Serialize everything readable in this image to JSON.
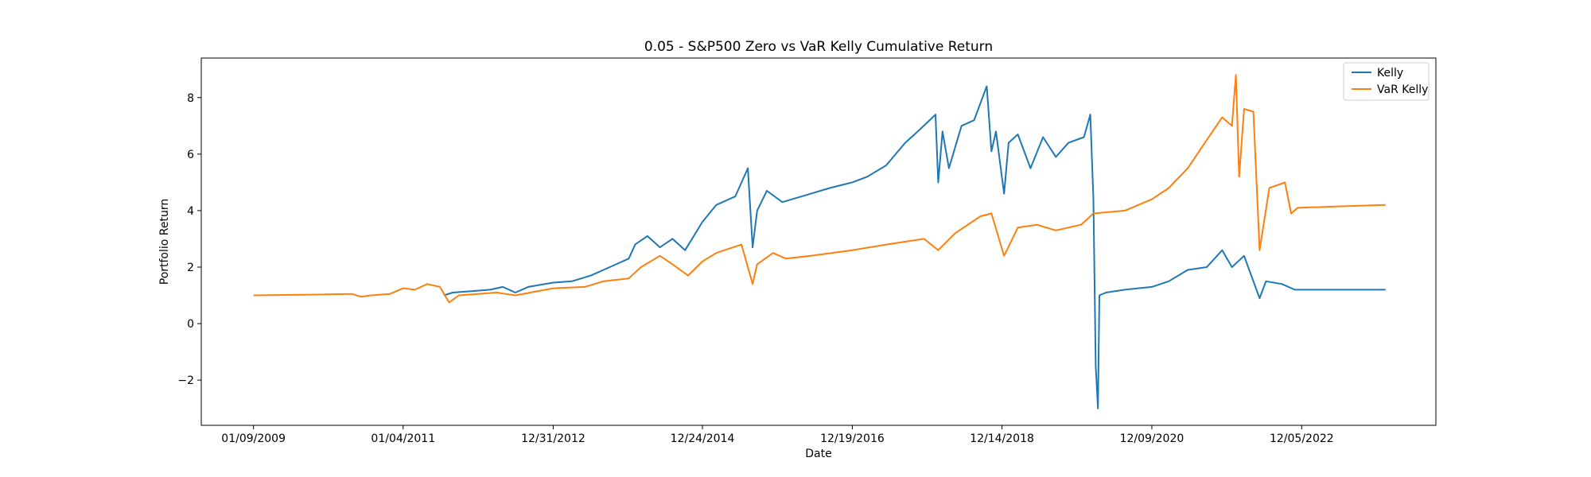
{
  "chart_data": {
    "type": "line",
    "title": "0.05 - S&P500 Zero vs VaR Kelly Cumulative Return",
    "xlabel": "Date",
    "ylabel": "Portfolio Return",
    "x_ticks": [
      "01/09/2009",
      "01/04/2011",
      "12/31/2012",
      "12/24/2014",
      "12/19/2016",
      "12/14/2018",
      "12/09/2020",
      "12/05/2022"
    ],
    "y_ticks": [
      -2,
      0,
      2,
      4,
      6,
      8
    ],
    "xlim": [
      "2008-05-01",
      "2024-09-15"
    ],
    "ylim": [
      -3.6,
      9.4
    ],
    "grid": false,
    "legend_position": "top-right",
    "series": [
      {
        "name": "Kelly",
        "color": "#1f77b4",
        "points": [
          [
            "2011-07-20",
            1.0
          ],
          [
            "2011-09-01",
            1.1
          ],
          [
            "2011-12-01",
            1.15
          ],
          [
            "2012-03-01",
            1.2
          ],
          [
            "2012-05-01",
            1.3
          ],
          [
            "2012-07-01",
            1.1
          ],
          [
            "2012-09-01",
            1.3
          ],
          [
            "2012-12-31",
            1.45
          ],
          [
            "2013-04-01",
            1.5
          ],
          [
            "2013-07-01",
            1.7
          ],
          [
            "2013-10-01",
            2.0
          ],
          [
            "2014-01-01",
            2.3
          ],
          [
            "2014-02-01",
            2.8
          ],
          [
            "2014-04-01",
            3.1
          ],
          [
            "2014-06-01",
            2.7
          ],
          [
            "2014-08-01",
            3.0
          ],
          [
            "2014-10-01",
            2.6
          ],
          [
            "2014-12-24",
            3.6
          ],
          [
            "2015-03-01",
            4.2
          ],
          [
            "2015-06-01",
            4.5
          ],
          [
            "2015-08-01",
            5.5
          ],
          [
            "2015-08-24",
            2.7
          ],
          [
            "2015-09-15",
            4.0
          ],
          [
            "2015-11-01",
            4.7
          ],
          [
            "2016-01-15",
            4.3
          ],
          [
            "2016-03-01",
            4.4
          ],
          [
            "2016-06-01",
            4.6
          ],
          [
            "2016-09-01",
            4.8
          ],
          [
            "2016-12-19",
            5.0
          ],
          [
            "2017-03-01",
            5.2
          ],
          [
            "2017-06-01",
            5.6
          ],
          [
            "2017-09-01",
            6.4
          ],
          [
            "2017-11-01",
            6.8
          ],
          [
            "2018-01-26",
            7.4
          ],
          [
            "2018-02-08",
            5.0
          ],
          [
            "2018-03-01",
            6.8
          ],
          [
            "2018-04-01",
            5.5
          ],
          [
            "2018-06-01",
            7.0
          ],
          [
            "2018-08-01",
            7.2
          ],
          [
            "2018-10-01",
            8.4
          ],
          [
            "2018-10-24",
            6.1
          ],
          [
            "2018-11-15",
            6.8
          ],
          [
            "2018-12-24",
            4.6
          ],
          [
            "2019-01-15",
            6.4
          ],
          [
            "2019-03-01",
            6.7
          ],
          [
            "2019-05-01",
            5.5
          ],
          [
            "2019-07-01",
            6.6
          ],
          [
            "2019-09-01",
            5.9
          ],
          [
            "2019-11-01",
            6.4
          ],
          [
            "2020-01-15",
            6.6
          ],
          [
            "2020-02-15",
            7.4
          ],
          [
            "2020-03-01",
            4.4
          ],
          [
            "2020-03-12",
            -1.5
          ],
          [
            "2020-03-23",
            -3.0
          ],
          [
            "2020-03-30",
            1.0
          ],
          [
            "2020-05-01",
            1.1
          ],
          [
            "2020-08-01",
            1.2
          ],
          [
            "2020-12-09",
            1.3
          ],
          [
            "2021-03-01",
            1.5
          ],
          [
            "2021-06-01",
            1.9
          ],
          [
            "2021-09-01",
            2.0
          ],
          [
            "2021-11-15",
            2.6
          ],
          [
            "2022-01-01",
            2.0
          ],
          [
            "2022-03-01",
            2.4
          ],
          [
            "2022-05-15",
            0.9
          ],
          [
            "2022-06-15",
            1.5
          ],
          [
            "2022-09-01",
            1.4
          ],
          [
            "2022-11-01",
            1.2
          ],
          [
            "2023-03-01",
            1.2
          ],
          [
            "2024-01-15",
            1.2
          ]
        ]
      },
      {
        "name": "VaR Kelly",
        "color": "#ff7f0e",
        "points": [
          [
            "2009-01-09",
            1.0
          ],
          [
            "2009-09-01",
            1.02
          ],
          [
            "2010-05-01",
            1.05
          ],
          [
            "2010-06-15",
            0.95
          ],
          [
            "2010-08-01",
            1.0
          ],
          [
            "2010-11-01",
            1.05
          ],
          [
            "2011-01-04",
            1.25
          ],
          [
            "2011-03-01",
            1.2
          ],
          [
            "2011-05-01",
            1.4
          ],
          [
            "2011-07-01",
            1.3
          ],
          [
            "2011-08-15",
            0.75
          ],
          [
            "2011-10-01",
            1.0
          ],
          [
            "2012-01-01",
            1.05
          ],
          [
            "2012-04-01",
            1.1
          ],
          [
            "2012-07-01",
            1.0
          ],
          [
            "2012-12-31",
            1.25
          ],
          [
            "2013-06-01",
            1.3
          ],
          [
            "2013-09-01",
            1.5
          ],
          [
            "2014-01-01",
            1.6
          ],
          [
            "2014-03-01",
            2.0
          ],
          [
            "2014-06-01",
            2.4
          ],
          [
            "2014-08-01",
            2.1
          ],
          [
            "2014-10-15",
            1.7
          ],
          [
            "2014-12-24",
            2.2
          ],
          [
            "2015-03-01",
            2.5
          ],
          [
            "2015-07-01",
            2.8
          ],
          [
            "2015-08-24",
            1.4
          ],
          [
            "2015-09-15",
            2.1
          ],
          [
            "2015-12-01",
            2.5
          ],
          [
            "2016-02-01",
            2.3
          ],
          [
            "2016-06-01",
            2.4
          ],
          [
            "2016-12-19",
            2.6
          ],
          [
            "2017-06-01",
            2.8
          ],
          [
            "2017-12-01",
            3.0
          ],
          [
            "2018-02-08",
            2.6
          ],
          [
            "2018-05-01",
            3.2
          ],
          [
            "2018-09-01",
            3.8
          ],
          [
            "2018-10-24",
            3.9
          ],
          [
            "2018-12-24",
            2.4
          ],
          [
            "2019-03-01",
            3.4
          ],
          [
            "2019-06-01",
            3.5
          ],
          [
            "2019-09-01",
            3.3
          ],
          [
            "2020-01-01",
            3.5
          ],
          [
            "2020-03-01",
            3.9
          ],
          [
            "2020-08-01",
            4.0
          ],
          [
            "2020-12-09",
            4.4
          ],
          [
            "2021-03-01",
            4.8
          ],
          [
            "2021-06-01",
            5.5
          ],
          [
            "2021-09-01",
            6.5
          ],
          [
            "2021-11-15",
            7.3
          ],
          [
            "2022-01-01",
            7.0
          ],
          [
            "2022-01-20",
            8.8
          ],
          [
            "2022-02-05",
            5.2
          ],
          [
            "2022-03-01",
            7.6
          ],
          [
            "2022-04-15",
            7.5
          ],
          [
            "2022-05-15",
            2.6
          ],
          [
            "2022-07-01",
            4.8
          ],
          [
            "2022-09-15",
            5.0
          ],
          [
            "2022-10-15",
            3.9
          ],
          [
            "2022-11-15",
            4.1
          ],
          [
            "2023-06-01",
            4.15
          ],
          [
            "2024-01-15",
            4.2
          ]
        ]
      }
    ]
  }
}
